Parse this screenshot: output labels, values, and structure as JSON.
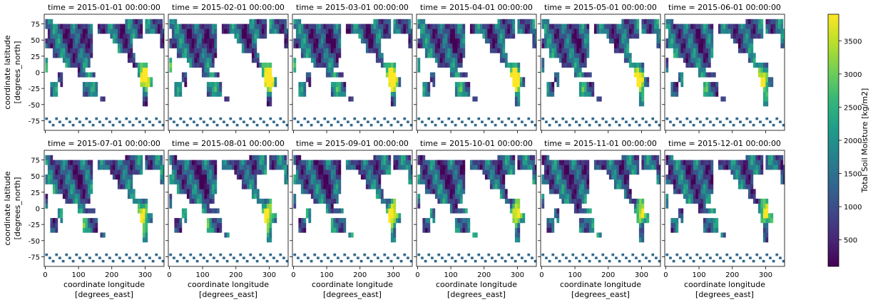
{
  "chart_data": {
    "type": "heatmap",
    "layout": "facet-grid",
    "rows": 2,
    "cols": 6,
    "panel_titles": [
      "time = 2015-01-01 00:00:00",
      "time = 2015-02-01 00:00:00",
      "time = 2015-03-01 00:00:00",
      "time = 2015-04-01 00:00:00",
      "time = 2015-05-01 00:00:00",
      "time = 2015-06-01 00:00:00",
      "time = 2015-07-01 00:00:00",
      "time = 2015-08-01 00:00:00",
      "time = 2015-09-01 00:00:00",
      "time = 2015-10-01 00:00:00",
      "time = 2015-11-01 00:00:00",
      "time = 2015-12-01 00:00:00"
    ],
    "xlabel_line1": "coordinate longitude",
    "xlabel_line2": "[degrees_east]",
    "ylabel_line1": "coordinate latitude",
    "ylabel_line2": "[degrees_north]",
    "xlim": [
      -3,
      357
    ],
    "ylim": [
      -90,
      90
    ],
    "xticks": [
      0,
      100,
      200,
      300
    ],
    "yticks": [
      75,
      50,
      25,
      0,
      -25,
      -50,
      -75
    ],
    "colorbar": {
      "label": "Total Soil Moisture [kg/m2]",
      "colormap": "viridis",
      "vmin": 100,
      "vmax": 3900,
      "ticks": [
        500,
        1000,
        1500,
        2000,
        2500,
        3000,
        3500
      ]
    },
    "grid": false,
    "colors": [
      "#440154",
      "#482878",
      "#3e4989",
      "#31688e",
      "#26828e",
      "#1f9e89",
      "#35b779",
      "#6ece58",
      "#b5de2b",
      "#fde725"
    ]
  }
}
